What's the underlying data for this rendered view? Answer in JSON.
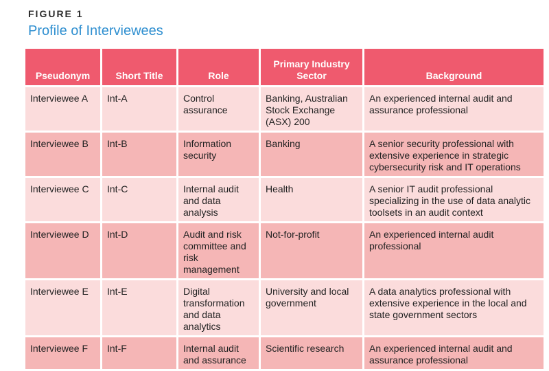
{
  "figure": {
    "label": "FIGURE 1",
    "title": "Profile of Interviewees"
  },
  "table": {
    "headers": [
      "Pseudonym",
      "Short Title",
      "Role",
      "Primary Industry Sector",
      "Background"
    ],
    "rows": [
      [
        "Interviewee A",
        "Int-A",
        "Control assurance",
        "Banking, Australian Stock Exchange (ASX) 200",
        "An experienced internal audit and assurance professional"
      ],
      [
        "Interviewee B",
        "Int-B",
        "Information security",
        "Banking",
        "A senior security professional with extensive experience in strategic cybersecurity risk and IT operations"
      ],
      [
        "Interviewee C",
        "Int-C",
        "Internal audit and data analysis",
        "Health",
        "A senior IT audit professional specializing in the use of data analytic toolsets in an audit context"
      ],
      [
        "Interviewee D",
        "Int-D",
        "Audit and risk committee and risk management",
        "Not-for-profit",
        "An experienced internal audit professional"
      ],
      [
        "Interviewee E",
        "Int-E",
        "Digital transformation and data analytics",
        "University and local government",
        "A data analytics professional with extensive experience in the local and state government sectors"
      ],
      [
        "Interviewee F",
        "Int-F",
        "Internal audit and assurance",
        "Scientific research",
        "An experienced internal audit and assurance professional"
      ]
    ]
  },
  "colors": {
    "header_bg": "#ef5a6e",
    "row_light": "#fbdcdc",
    "row_dark": "#f5b6b6",
    "title": "#2f8fd0"
  }
}
